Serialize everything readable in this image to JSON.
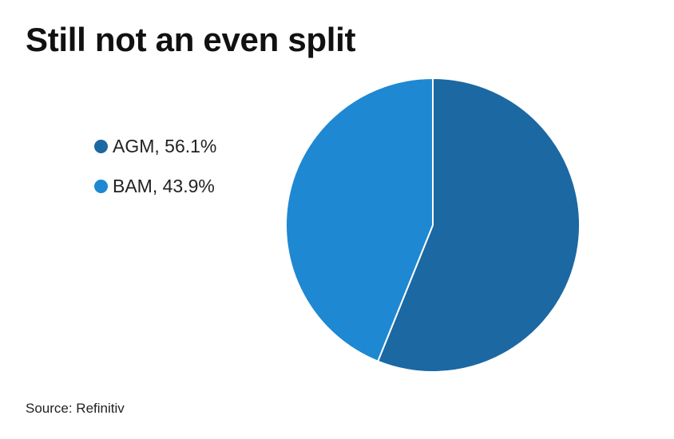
{
  "chart_data": {
    "type": "pie",
    "title": "Still not an even split",
    "categories": [
      "AGM",
      "BAM"
    ],
    "values": [
      56.1,
      43.9
    ],
    "unit": "%",
    "legend": {
      "placement": "left",
      "items": [
        {
          "label": "AGM, 56.1%",
          "color": "#1b68a3"
        },
        {
          "label": "BAM, 43.9%",
          "color": "#1e88d2"
        }
      ]
    },
    "colors": [
      "#1b68a3",
      "#1e88d2"
    ],
    "source": "Source: Refinitiv"
  }
}
